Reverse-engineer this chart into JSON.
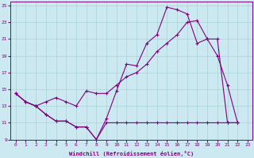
{
  "xlabel": "Windchill (Refroidissement éolien,°C)",
  "bg_color": "#cce8f0",
  "line_color": "#800080",
  "grid_color": "#a8d4d4",
  "xlim": [
    -0.5,
    23.5
  ],
  "ylim": [
    9,
    25.5
  ],
  "yticks": [
    9,
    11,
    13,
    15,
    17,
    19,
    21,
    23,
    25
  ],
  "xticks": [
    0,
    1,
    2,
    3,
    4,
    5,
    6,
    7,
    8,
    9,
    10,
    11,
    12,
    13,
    14,
    15,
    16,
    17,
    18,
    19,
    20,
    21,
    22,
    23
  ],
  "series1_x": [
    0,
    1,
    2,
    3,
    4,
    5,
    6,
    7,
    8,
    9,
    10,
    11,
    12,
    13,
    14,
    15,
    16,
    17,
    18,
    19,
    20,
    21,
    22
  ],
  "series1_y": [
    14.5,
    13.5,
    13.0,
    12.0,
    11.2,
    11.2,
    10.5,
    10.5,
    9.0,
    11.5,
    14.8,
    18.0,
    17.8,
    20.5,
    21.5,
    24.8,
    24.5,
    24.0,
    20.5,
    21.0,
    19.0,
    15.5,
    11.0
  ],
  "series2_x": [
    0,
    1,
    2,
    3,
    4,
    5,
    6,
    7,
    8,
    9,
    10,
    11,
    12,
    13,
    14,
    15,
    16,
    17,
    18,
    19,
    20,
    21,
    22
  ],
  "series2_y": [
    14.5,
    13.5,
    13.0,
    13.5,
    14.0,
    13.5,
    13.0,
    14.8,
    14.5,
    14.5,
    15.5,
    16.5,
    17.0,
    18.0,
    19.5,
    20.5,
    21.5,
    23.0,
    23.2,
    21.0,
    21.0,
    11.0,
    11.0
  ],
  "series3_x": [
    0,
    1,
    2,
    3,
    4,
    5,
    6,
    7,
    8,
    9,
    10,
    11,
    12,
    13,
    14,
    15,
    16,
    17,
    18,
    19,
    20,
    21,
    22
  ],
  "series3_y": [
    14.5,
    13.5,
    13.0,
    12.0,
    11.2,
    11.2,
    10.5,
    10.5,
    9.0,
    11.0,
    11.0,
    11.0,
    11.0,
    11.0,
    11.0,
    11.0,
    11.0,
    11.0,
    11.0,
    11.0,
    11.0,
    11.0,
    11.0
  ]
}
